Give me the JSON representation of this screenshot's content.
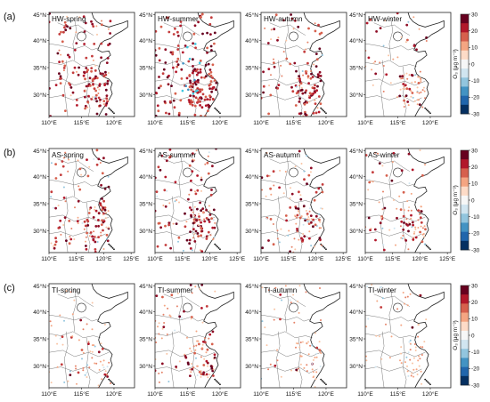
{
  "rows": [
    {
      "label": "(a)",
      "panels": [
        "HW-spring",
        "HW-summer",
        "HW-autumn",
        "HW-winter"
      ],
      "x_ticks": [
        "110°E",
        "115°E",
        "120°E"
      ]
    },
    {
      "label": "(b)",
      "panels": [
        "AS-spring",
        "AS-summer",
        "AS-autumn",
        "AS-winter"
      ],
      "x_ticks": [
        "110°E",
        "115°E",
        "120°E",
        "125°E"
      ]
    },
    {
      "label": "(c)",
      "panels": [
        "TI-spring",
        "TI-summer",
        "TI-autumn",
        "TI-winter"
      ],
      "x_ticks": [
        "110°E",
        "115°E",
        "120°E"
      ]
    }
  ],
  "y_ticks": [
    "45°N",
    "40°N",
    "35°N",
    "30°N"
  ],
  "colorbar": {
    "label": "O₃ (μg m⁻³)",
    "ticks": [
      "30",
      "20",
      "10",
      "0",
      "-10",
      "-20",
      "-30"
    ],
    "colors": [
      "#67001f",
      "#b2182b",
      "#d6604d",
      "#f4a582",
      "#fddbc7",
      "#f7f7f7",
      "#d1e5f0",
      "#92c5de",
      "#4393c3",
      "#2166ac",
      "#053061"
    ]
  },
  "intensity": {
    "HW-spring": 0.75,
    "HW-summer": 1.0,
    "HW-autumn": 0.65,
    "HW-winter": 0.3,
    "AS-spring": 0.6,
    "AS-summer": 0.65,
    "AS-autumn": 0.5,
    "AS-winter": 0.4,
    "TI-spring": 0.12,
    "TI-summer": 0.45,
    "TI-autumn": 0.1,
    "TI-winter": 0.08
  }
}
